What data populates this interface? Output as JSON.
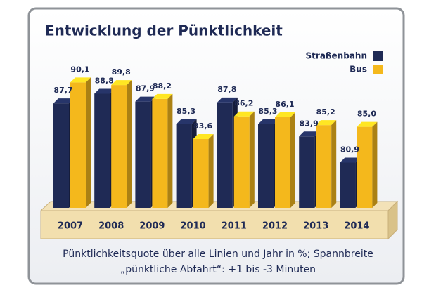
{
  "chart_data": {
    "type": "bar",
    "title": "Entwicklung der Pünktlichkeit",
    "categories": [
      "2007",
      "2008",
      "2009",
      "2010",
      "2011",
      "2012",
      "2013",
      "2014"
    ],
    "series": [
      {
        "name": "Straßenbahn",
        "color": "#1f2a55",
        "values": [
          87.7,
          88.8,
          87.9,
          85.3,
          87.8,
          85.3,
          83.9,
          80.9
        ],
        "value_labels": [
          "87,7",
          "88,8",
          "87,9",
          "85,3",
          "87,8",
          "85,3",
          "83,9",
          "80,9"
        ]
      },
      {
        "name": "Bus",
        "color": "#f4b81c",
        "values": [
          90.1,
          89.8,
          88.2,
          83.6,
          86.2,
          86.1,
          85.2,
          85.0
        ],
        "value_labels": [
          "90,1",
          "89,8",
          "88,2",
          "83,6",
          "86,2",
          "86,1",
          "85,2",
          "85,0"
        ]
      }
    ],
    "ylim": [
      75.7,
      91.5
    ],
    "legend": "upper right",
    "caption": [
      "Pünktlichkeitsquote über alle Linien und Jahr in %; Spannbreite",
      "„pünktliche Abfahrt“: +1 bis -3 Minuten"
    ]
  }
}
